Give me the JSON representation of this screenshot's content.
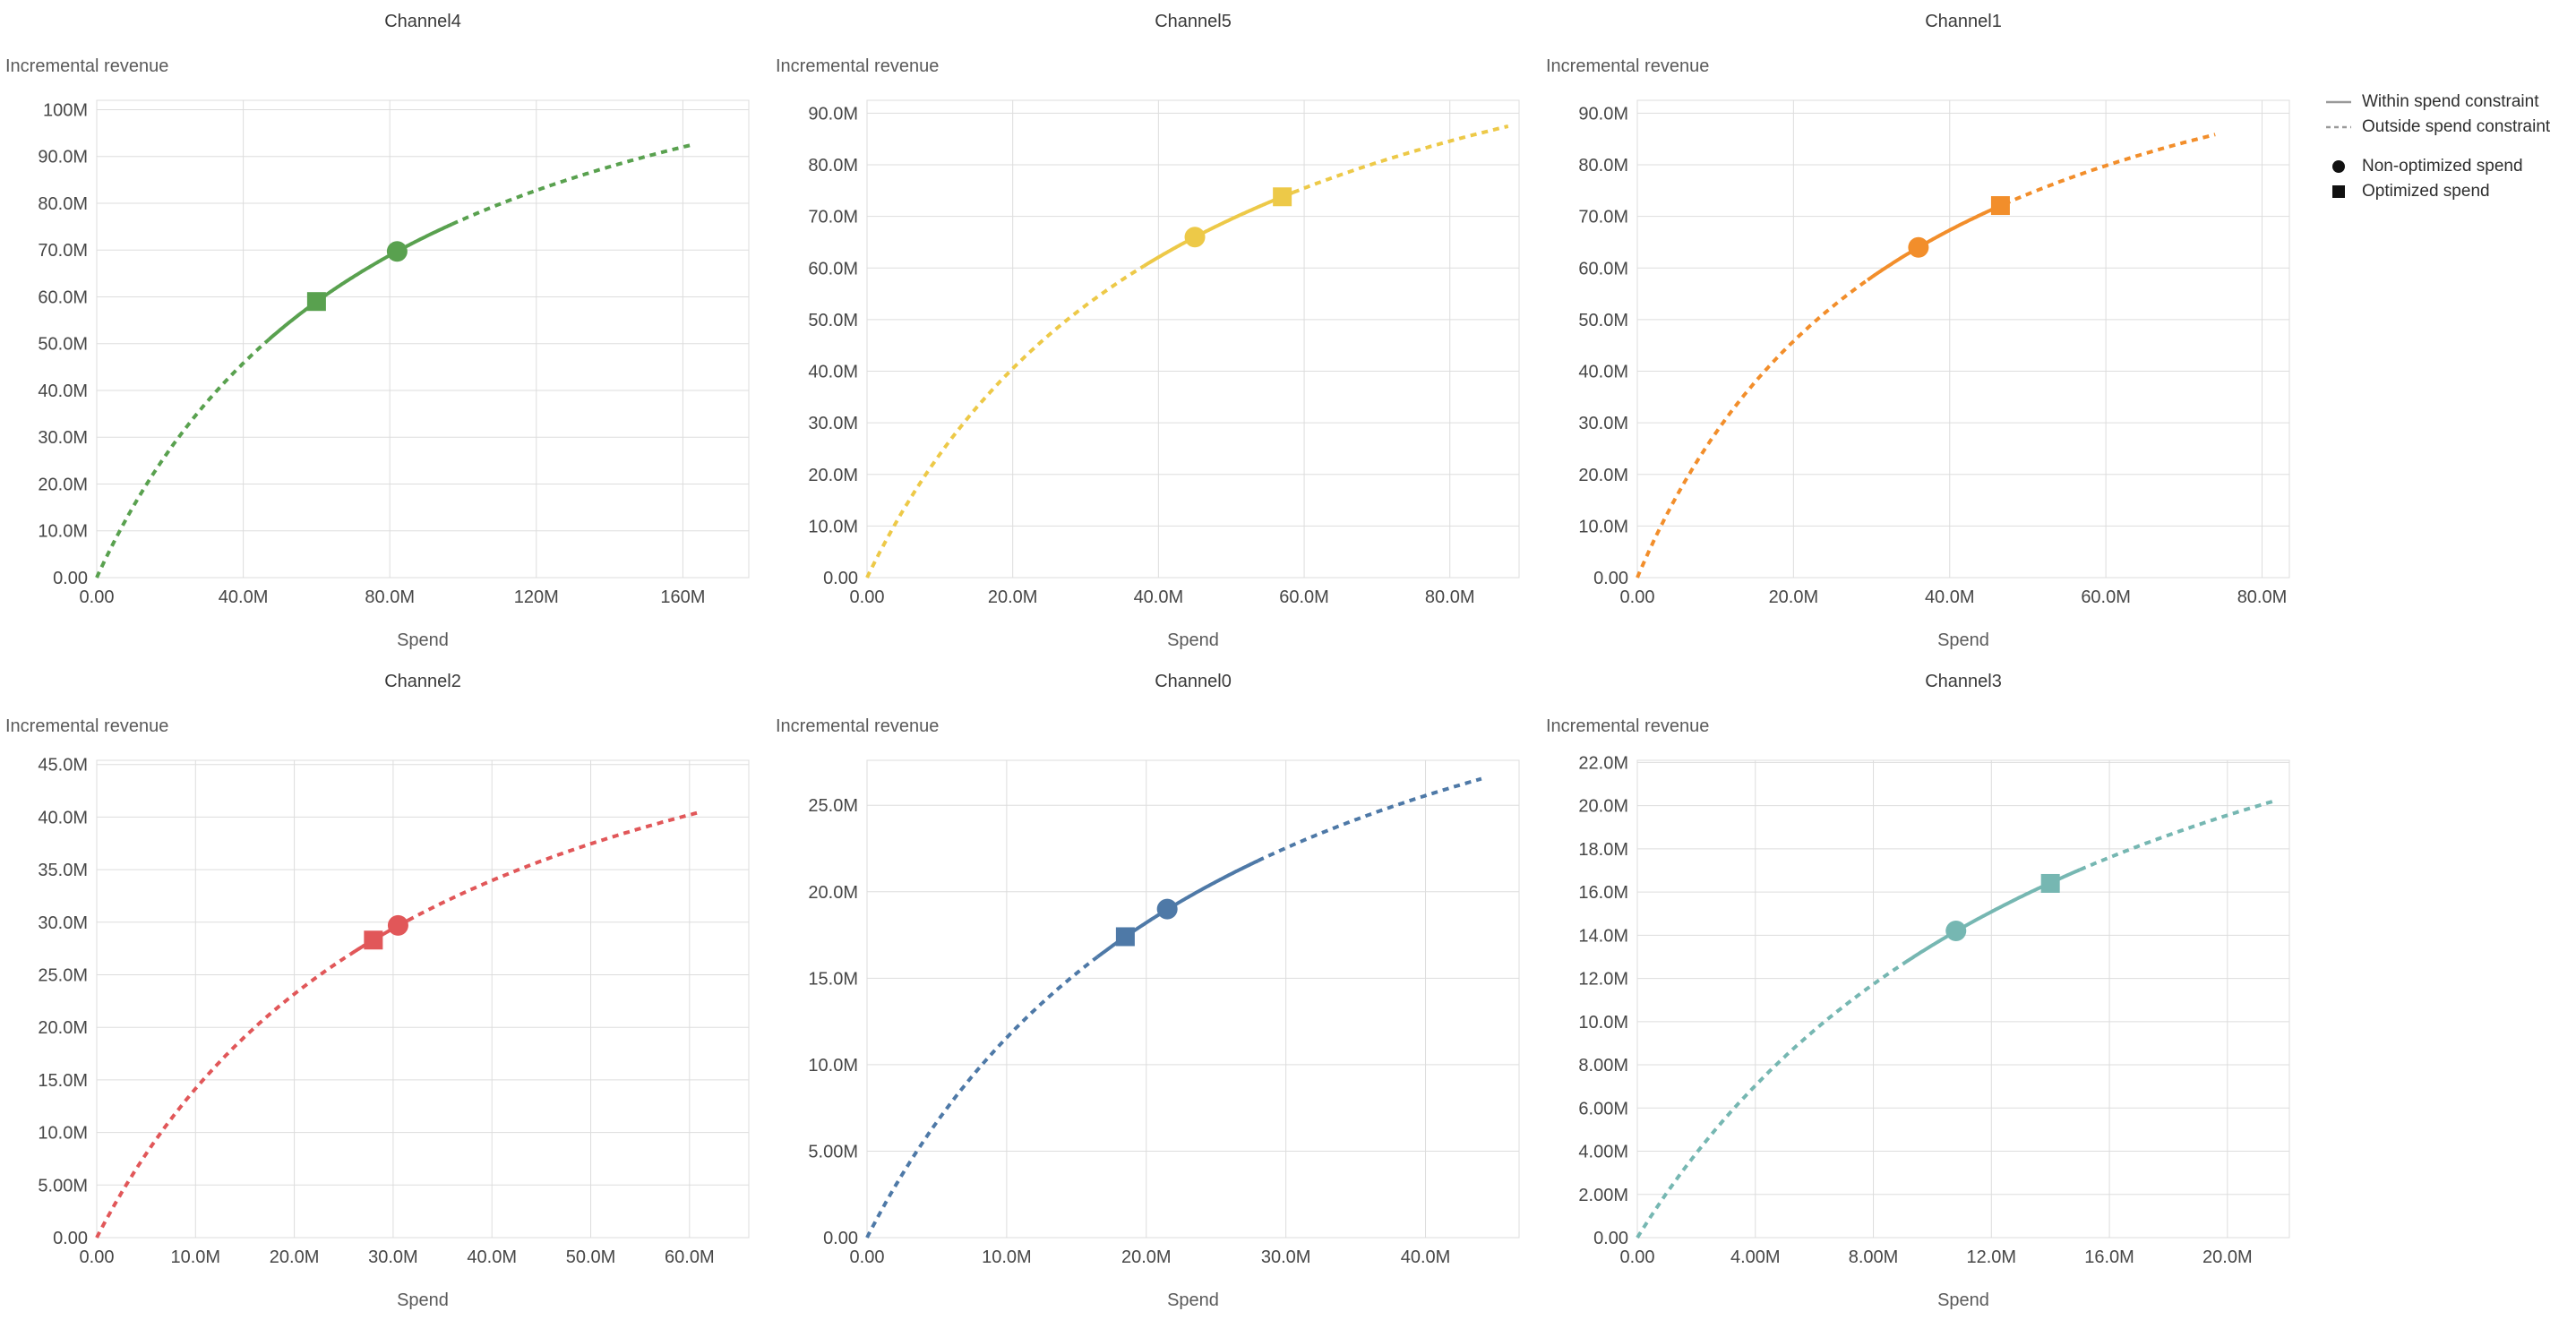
{
  "figure": {
    "background": "#ffffff",
    "grid": true,
    "legend_position": "top-right",
    "panel_order": [
      "Channel4",
      "Channel5",
      "Channel1",
      "Channel2",
      "Channel0",
      "Channel3"
    ]
  },
  "legend": {
    "line_color": "#999999",
    "symbol_color": "#111111",
    "items": [
      {
        "symbol": "solid-line",
        "label": "Within spend constraint"
      },
      {
        "symbol": "dashed-line",
        "label": "Outside spend constraint"
      },
      {
        "symbol": "filled-circle",
        "label": "Non-optimized spend"
      },
      {
        "symbol": "filled-square",
        "label": "Optimized spend"
      }
    ]
  },
  "chart_data": [
    {
      "type": "line",
      "title": "Channel4",
      "xlabel": "Spend",
      "ylabel": "Incremental revenue",
      "color": "#59a14f",
      "units": "millions",
      "xlim": [
        0,
        178
      ],
      "ylim": [
        0,
        102
      ],
      "x_ticks": [
        {
          "v": 0,
          "label": "0.00"
        },
        {
          "v": 40,
          "label": "40.0M"
        },
        {
          "v": 80,
          "label": "80.0M"
        },
        {
          "v": 120,
          "label": "120M"
        },
        {
          "v": 160,
          "label": "160M"
        }
      ],
      "y_ticks": [
        {
          "v": 0,
          "label": "0.00"
        },
        {
          "v": 10,
          "label": "10.0M"
        },
        {
          "v": 20,
          "label": "20.0M"
        },
        {
          "v": 30,
          "label": "30.0M"
        },
        {
          "v": 40,
          "label": "40.0M"
        },
        {
          "v": 50,
          "label": "50.0M"
        },
        {
          "v": 60,
          "label": "60.0M"
        },
        {
          "v": 70,
          "label": "70.0M"
        },
        {
          "v": 80,
          "label": "80.0M"
        },
        {
          "v": 90,
          "label": "90.0M"
        },
        {
          "v": 100,
          "label": "100M"
        }
      ],
      "curve": {
        "formula": "y = vmax*x/(k+x)",
        "vmax": 138.6,
        "k": 81,
        "x_end": 163
      },
      "solid_range": [
        47,
        97
      ],
      "markers": {
        "non_optimized": {
          "x": 82,
          "y": 69.7
        },
        "optimized": {
          "x": 60,
          "y": 59.0
        }
      },
      "sample_points": [
        [
          0,
          0
        ],
        [
          10,
          15.2
        ],
        [
          20,
          27.4
        ],
        [
          30,
          37.5
        ],
        [
          40,
          45.8
        ],
        [
          50,
          52.9
        ],
        [
          60,
          59.0
        ],
        [
          70,
          64.2
        ],
        [
          80,
          68.9
        ],
        [
          90,
          72.9
        ],
        [
          100,
          76.6
        ],
        [
          110,
          79.8
        ],
        [
          120,
          82.8
        ],
        [
          130,
          85.4
        ],
        [
          140,
          87.8
        ],
        [
          150,
          90.0
        ],
        [
          163,
          92.6
        ]
      ]
    },
    {
      "type": "line",
      "title": "Channel5",
      "xlabel": "Spend",
      "ylabel": "Incremental revenue",
      "color": "#edc948",
      "units": "millions",
      "xlim": [
        0,
        89.5
      ],
      "ylim": [
        0,
        92.5
      ],
      "x_ticks": [
        {
          "v": 0,
          "label": "0.00"
        },
        {
          "v": 20,
          "label": "20.0M"
        },
        {
          "v": 40,
          "label": "40.0M"
        },
        {
          "v": 60,
          "label": "60.0M"
        },
        {
          "v": 80,
          "label": "80.0M"
        }
      ],
      "y_ticks": [
        {
          "v": 0,
          "label": "0.00"
        },
        {
          "v": 10,
          "label": "10.0M"
        },
        {
          "v": 20,
          "label": "20.0M"
        },
        {
          "v": 30,
          "label": "30.0M"
        },
        {
          "v": 40,
          "label": "40.0M"
        },
        {
          "v": 50,
          "label": "50.0M"
        },
        {
          "v": 60,
          "label": "60.0M"
        },
        {
          "v": 70,
          "label": "70.0M"
        },
        {
          "v": 80,
          "label": "80.0M"
        },
        {
          "v": 90,
          "label": "90.0M"
        }
      ],
      "curve": {
        "formula": "y = vmax*x/(k+x)",
        "vmax": 132.7,
        "k": 45.5,
        "x_end": 88
      },
      "solid_range": [
        38,
        58.5
      ],
      "markers": {
        "non_optimized": {
          "x": 45,
          "y": 66.0
        },
        "optimized": {
          "x": 57,
          "y": 73.8
        }
      },
      "sample_points": [
        [
          0,
          0
        ],
        [
          10,
          23.9
        ],
        [
          20,
          40.5
        ],
        [
          30,
          52.7
        ],
        [
          40,
          62.1
        ],
        [
          50,
          69.5
        ],
        [
          60,
          75.5
        ],
        [
          70,
          80.4
        ],
        [
          80,
          84.6
        ],
        [
          88,
          87.5
        ]
      ]
    },
    {
      "type": "line",
      "title": "Channel1",
      "xlabel": "Spend",
      "ylabel": "Incremental revenue",
      "color": "#f28e2b",
      "units": "millions",
      "xlim": [
        0,
        83.5
      ],
      "ylim": [
        0,
        92.5
      ],
      "x_ticks": [
        {
          "v": 0,
          "label": "0.00"
        },
        {
          "v": 20,
          "label": "20.0M"
        },
        {
          "v": 40,
          "label": "40.0M"
        },
        {
          "v": 60,
          "label": "60.0M"
        },
        {
          "v": 80,
          "label": "80.0M"
        }
      ],
      "y_ticks": [
        {
          "v": 0,
          "label": "0.00"
        },
        {
          "v": 10,
          "label": "10.0M"
        },
        {
          "v": 20,
          "label": "20.0M"
        },
        {
          "v": 30,
          "label": "30.0M"
        },
        {
          "v": 40,
          "label": "40.0M"
        },
        {
          "v": 50,
          "label": "50.0M"
        },
        {
          "v": 60,
          "label": "60.0M"
        },
        {
          "v": 70,
          "label": "70.0M"
        },
        {
          "v": 80,
          "label": "80.0M"
        },
        {
          "v": 90,
          "label": "90.0M"
        }
      ],
      "curve": {
        "formula": "y = vmax*x/(k+x)",
        "vmax": 127.0,
        "k": 35.45,
        "x_end": 74
      },
      "solid_range": [
        29.5,
        47
      ],
      "markers": {
        "non_optimized": {
          "x": 36,
          "y": 64.0
        },
        "optimized": {
          "x": 46.5,
          "y": 72.1
        }
      },
      "sample_points": [
        [
          0,
          0
        ],
        [
          10,
          27.9
        ],
        [
          20,
          45.8
        ],
        [
          30,
          58.2
        ],
        [
          40,
          67.3
        ],
        [
          50,
          74.3
        ],
        [
          60,
          79.8
        ],
        [
          70,
          84.3
        ],
        [
          74,
          85.9
        ]
      ]
    },
    {
      "type": "line",
      "title": "Channel2",
      "xlabel": "Spend",
      "ylabel": "Incremental revenue",
      "color": "#e15759",
      "units": "millions",
      "xlim": [
        0,
        66
      ],
      "ylim": [
        0,
        45.4
      ],
      "x_ticks": [
        {
          "v": 0,
          "label": "0.00"
        },
        {
          "v": 10,
          "label": "10.0M"
        },
        {
          "v": 20,
          "label": "20.0M"
        },
        {
          "v": 30,
          "label": "30.0M"
        },
        {
          "v": 40,
          "label": "40.0M"
        },
        {
          "v": 50,
          "label": "50.0M"
        },
        {
          "v": 60,
          "label": "60.0M"
        }
      ],
      "y_ticks": [
        {
          "v": 0,
          "label": "0.00"
        },
        {
          "v": 5,
          "label": "5.00M"
        },
        {
          "v": 10,
          "label": "10.0M"
        },
        {
          "v": 15,
          "label": "15.0M"
        },
        {
          "v": 20,
          "label": "20.0M"
        },
        {
          "v": 25,
          "label": "25.0M"
        },
        {
          "v": 30,
          "label": "30.0M"
        },
        {
          "v": 35,
          "label": "35.0M"
        },
        {
          "v": 40,
          "label": "40.0M"
        },
        {
          "v": 45,
          "label": "45.0M"
        }
      ],
      "curve": {
        "formula": "y = vmax*x/(k+x)",
        "vmax": 63.6,
        "k": 34.9,
        "x_end": 61
      },
      "solid_range": [
        25.7,
        31.5
      ],
      "markers": {
        "non_optimized": {
          "x": 30.5,
          "y": 29.7
        },
        "optimized": {
          "x": 28,
          "y": 28.3
        }
      },
      "sample_points": [
        [
          0,
          0
        ],
        [
          5,
          8.0
        ],
        [
          10,
          14.2
        ],
        [
          15,
          19.1
        ],
        [
          20,
          23.2
        ],
        [
          25,
          26.5
        ],
        [
          30,
          29.4
        ],
        [
          35,
          31.8
        ],
        [
          40,
          34.0
        ],
        [
          45,
          35.8
        ],
        [
          50,
          37.5
        ],
        [
          55,
          38.9
        ],
        [
          61,
          40.5
        ]
      ]
    },
    {
      "type": "line",
      "title": "Channel0",
      "xlabel": "Spend",
      "ylabel": "Incremental revenue",
      "color": "#4e79a7",
      "units": "millions",
      "xlim": [
        0,
        46.7
      ],
      "ylim": [
        0,
        27.6
      ],
      "x_ticks": [
        {
          "v": 0,
          "label": "0.00"
        },
        {
          "v": 10,
          "label": "10.0M"
        },
        {
          "v": 20,
          "label": "20.0M"
        },
        {
          "v": 30,
          "label": "30.0M"
        },
        {
          "v": 40,
          "label": "40.0M"
        }
      ],
      "y_ticks": [
        {
          "v": 0,
          "label": "0.00"
        },
        {
          "v": 5,
          "label": "5.00M"
        },
        {
          "v": 10,
          "label": "10.0M"
        },
        {
          "v": 15,
          "label": "15.0M"
        },
        {
          "v": 20,
          "label": "20.0M"
        },
        {
          "v": 25,
          "label": "25.0M"
        }
      ],
      "curve": {
        "formula": "y = vmax*x/(k+x)",
        "vmax": 42.85,
        "k": 27.06,
        "x_end": 44
      },
      "solid_range": [
        16.5,
        28
      ],
      "markers": {
        "non_optimized": {
          "x": 21.5,
          "y": 19.0
        },
        "optimized": {
          "x": 18.5,
          "y": 17.4
        }
      },
      "sample_points": [
        [
          0,
          0
        ],
        [
          5,
          6.7
        ],
        [
          10,
          11.6
        ],
        [
          15,
          15.3
        ],
        [
          20,
          18.2
        ],
        [
          25,
          20.6
        ],
        [
          30,
          22.5
        ],
        [
          35,
          24.2
        ],
        [
          40,
          25.6
        ],
        [
          44,
          26.5
        ]
      ]
    },
    {
      "type": "line",
      "title": "Channel3",
      "xlabel": "Spend",
      "ylabel": "Incremental revenue",
      "color": "#76b7b2",
      "units": "millions",
      "xlim": [
        0,
        22.1
      ],
      "ylim": [
        0,
        22.1
      ],
      "x_ticks": [
        {
          "v": 0,
          "label": "0.00"
        },
        {
          "v": 4,
          "label": "4.00M"
        },
        {
          "v": 8,
          "label": "8.00M"
        },
        {
          "v": 12,
          "label": "12.0M"
        },
        {
          "v": 16,
          "label": "16.0M"
        },
        {
          "v": 20,
          "label": "20.0M"
        }
      ],
      "y_ticks": [
        {
          "v": 0,
          "label": "0.00"
        },
        {
          "v": 2,
          "label": "2.00M"
        },
        {
          "v": 4,
          "label": "4.00M"
        },
        {
          "v": 6,
          "label": "6.00M"
        },
        {
          "v": 8,
          "label": "8.00M"
        },
        {
          "v": 10,
          "label": "10.0M"
        },
        {
          "v": 12,
          "label": "12.0M"
        },
        {
          "v": 14,
          "label": "14.0M"
        },
        {
          "v": 16,
          "label": "16.0M"
        },
        {
          "v": 18,
          "label": "18.0M"
        },
        {
          "v": 20,
          "label": "20.0M"
        },
        {
          "v": 22,
          "label": "22.0M"
        }
      ],
      "curve": {
        "formula": "y = vmax*x/(k+x)",
        "vmax": 35.2,
        "k": 16.0,
        "x_end": 21.6
      },
      "solid_range": [
        9,
        15
      ],
      "markers": {
        "non_optimized": {
          "x": 10.8,
          "y": 14.2
        },
        "optimized": {
          "x": 14,
          "y": 16.4
        }
      },
      "sample_points": [
        [
          0,
          0
        ],
        [
          2,
          3.9
        ],
        [
          4,
          7.0
        ],
        [
          6,
          9.6
        ],
        [
          8,
          11.7
        ],
        [
          10,
          13.5
        ],
        [
          12,
          15.1
        ],
        [
          14,
          16.4
        ],
        [
          16,
          17.6
        ],
        [
          18,
          18.6
        ],
        [
          20,
          19.6
        ],
        [
          21.6,
          20.2
        ]
      ]
    }
  ]
}
